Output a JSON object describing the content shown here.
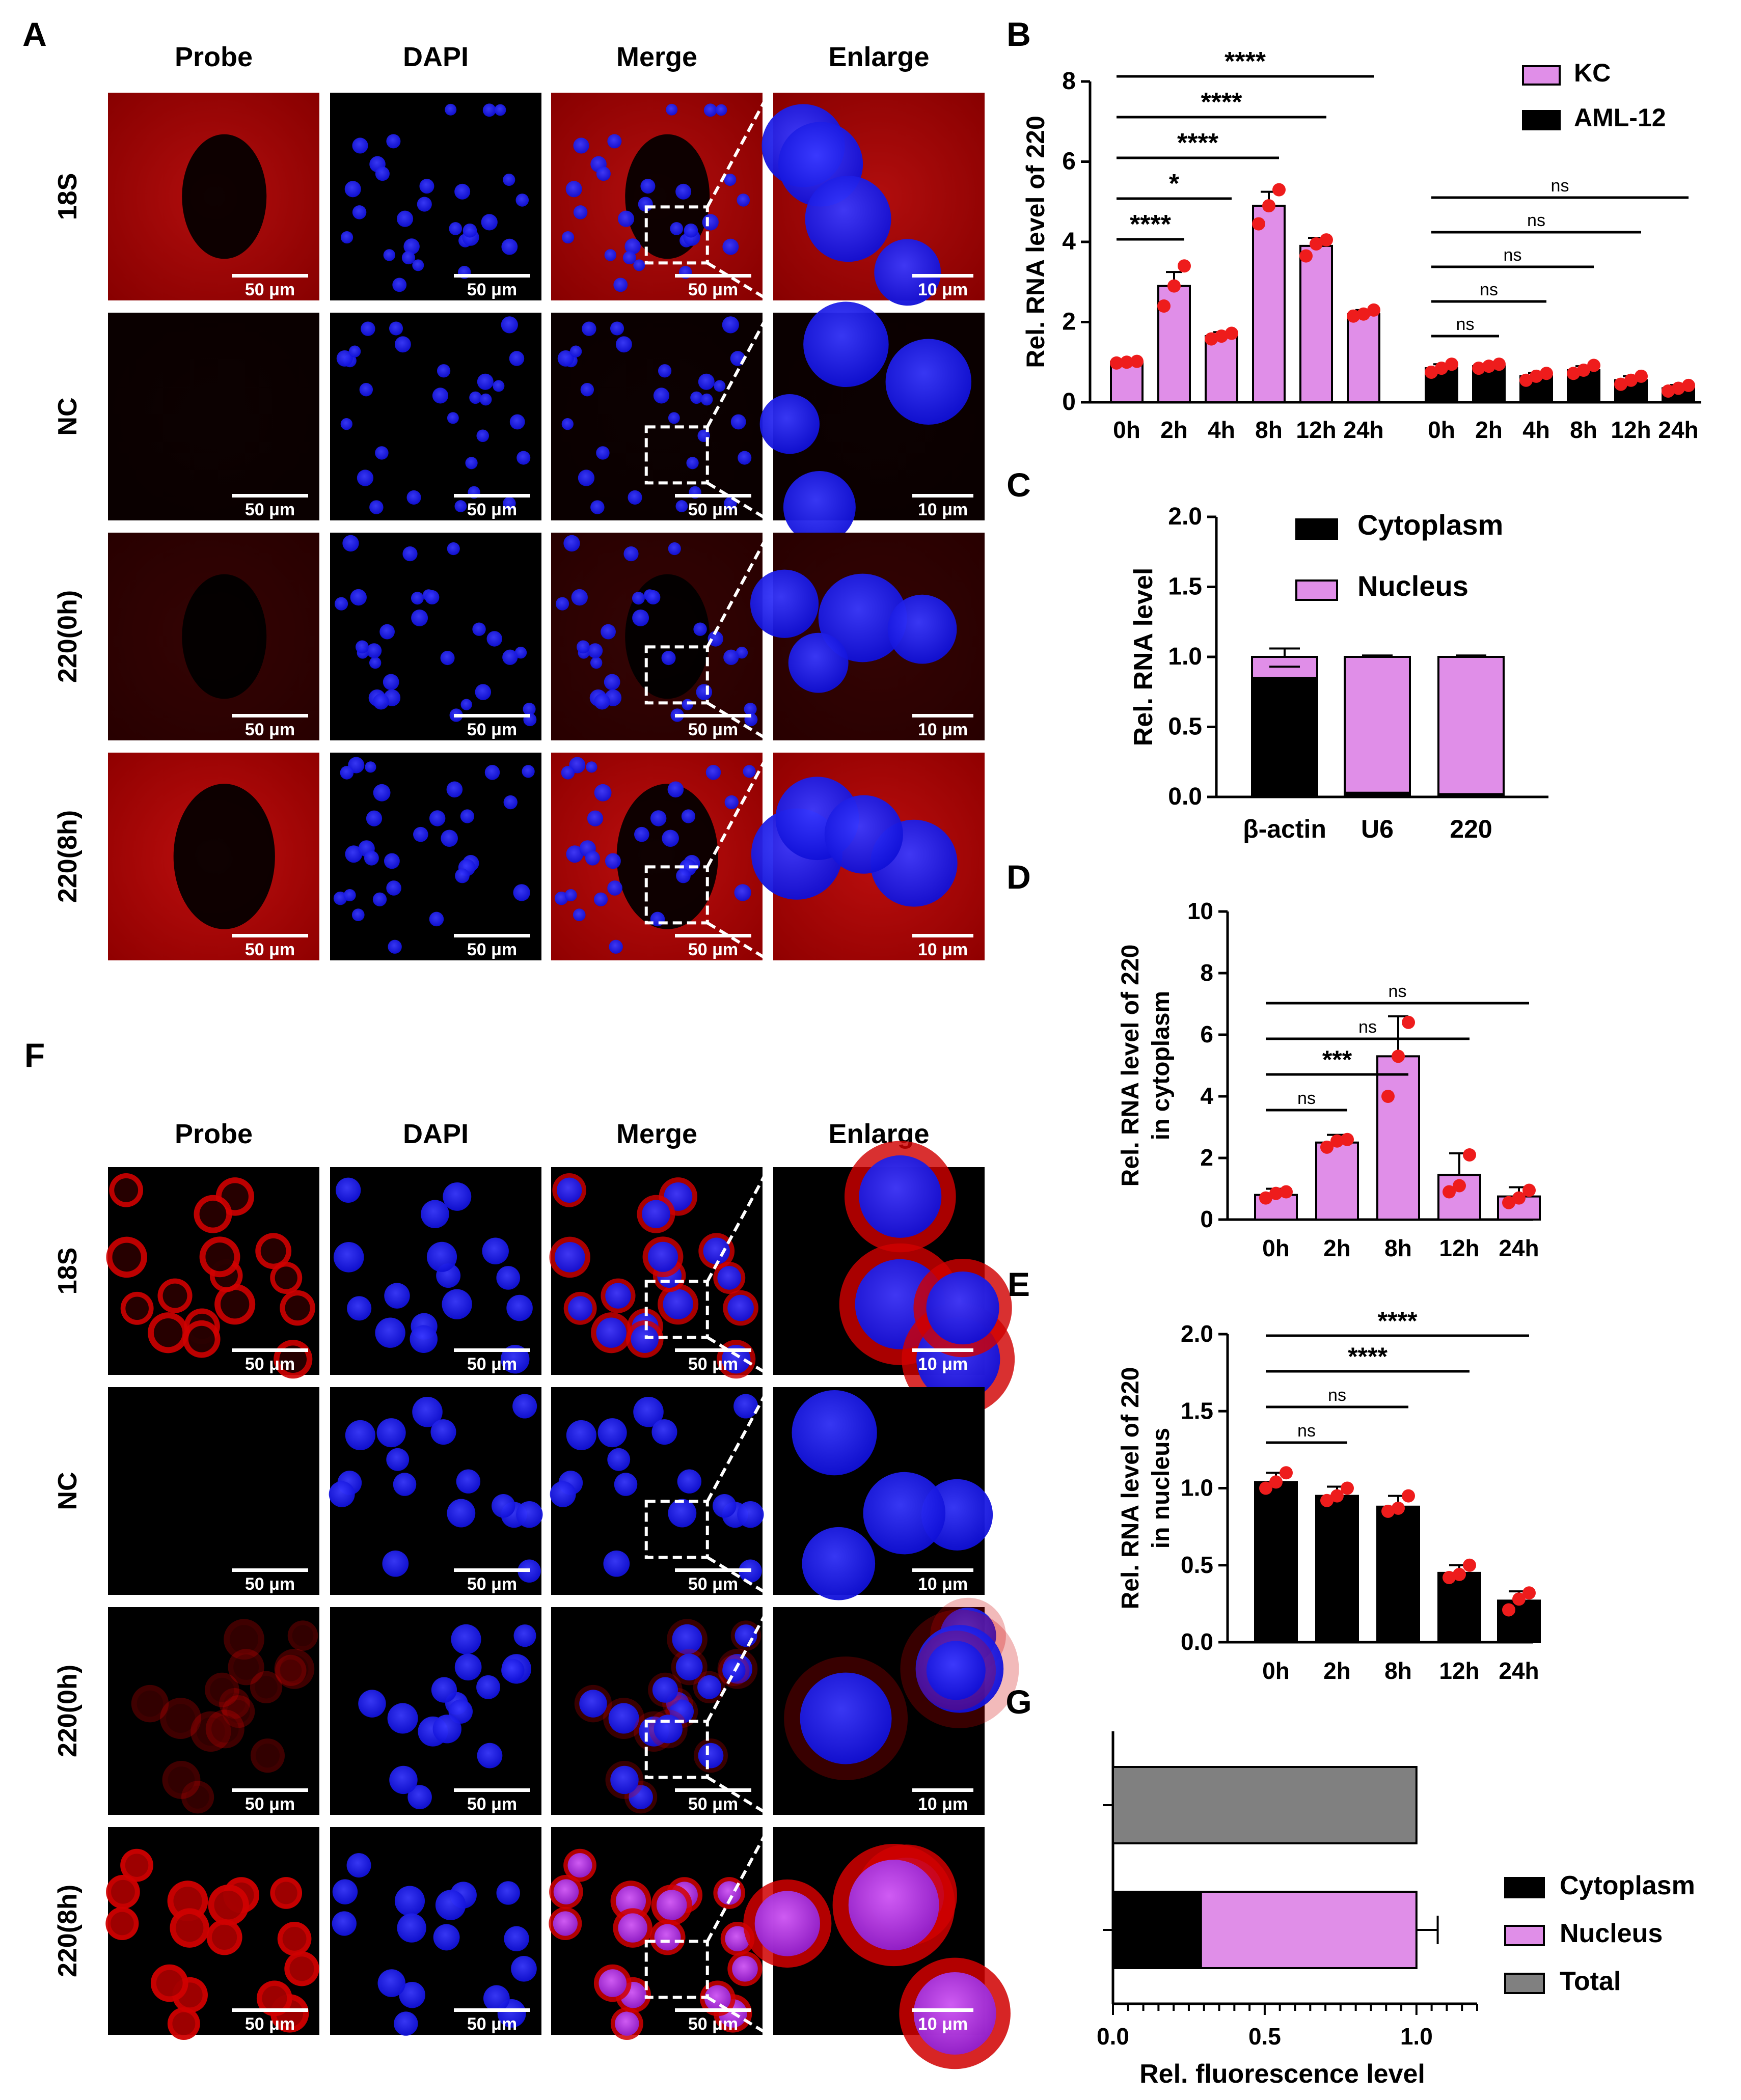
{
  "panel_letters": [
    "A",
    "B",
    "C",
    "D",
    "E",
    "F",
    "G"
  ],
  "micrograph_sets": [
    {
      "id": "A",
      "columns": [
        "Probe",
        "DAPI",
        "Merge",
        "Enlarge"
      ],
      "rows": [
        "18S",
        "NC",
        "220(0h)",
        "220(8h)"
      ],
      "scale_bar_main": "50 μm",
      "scale_bar_enlarge": "10 μm",
      "rows_probe_intensity": [
        0.85,
        0.05,
        0.25,
        0.9
      ]
    },
    {
      "id": "F",
      "columns": [
        "Probe",
        "DAPI",
        "Merge",
        "Enlarge"
      ],
      "rows": [
        "18S",
        "NC",
        "220(0h)",
        "220(8h)"
      ],
      "scale_bar_main": "50 μm",
      "scale_bar_enlarge": "10 μm",
      "rows_probe_intensity": [
        0.9,
        0.05,
        0.3,
        0.95
      ]
    }
  ],
  "colors": {
    "kc": "#e08ee8",
    "aml": "#000000",
    "dot": "#ee1c1c",
    "total": "#808080",
    "red": "#c80000",
    "blue": "#1a1aff"
  },
  "chart_data": [
    {
      "id": "B",
      "type": "bar",
      "ylabel": "Rel. RNA level of 220",
      "ylim": [
        0,
        8
      ],
      "yticks": [
        "0",
        "2",
        "4",
        "6",
        "8"
      ],
      "categories": [
        "0h",
        "2h",
        "4h",
        "8h",
        "12h",
        "24h"
      ],
      "series": [
        {
          "name": "KC",
          "values": [
            1.0,
            2.9,
            1.65,
            4.9,
            3.9,
            2.2
          ],
          "errors": [
            0.05,
            0.35,
            0.1,
            0.35,
            0.2,
            0.1
          ],
          "points": [
            [
              0.98,
              1.0,
              1.02
            ],
            [
              2.4,
              2.9,
              3.4
            ],
            [
              1.58,
              1.65,
              1.72
            ],
            [
              4.45,
              4.9,
              5.3
            ],
            [
              3.65,
              3.95,
              4.05
            ],
            [
              2.15,
              2.2,
              2.3
            ]
          ]
        },
        {
          "name": "AML-12",
          "values": [
            0.85,
            0.9,
            0.65,
            0.8,
            0.55,
            0.35
          ],
          "errors": [
            0.1,
            0.05,
            0.08,
            0.1,
            0.1,
            0.08
          ],
          "points": [
            [
              0.75,
              0.85,
              0.95
            ],
            [
              0.85,
              0.9,
              0.95
            ],
            [
              0.55,
              0.65,
              0.72
            ],
            [
              0.72,
              0.8,
              0.92
            ],
            [
              0.45,
              0.55,
              0.65
            ],
            [
              0.28,
              0.35,
              0.42
            ]
          ]
        }
      ],
      "legend": [
        "KC",
        "AML-12"
      ],
      "significance_kc": [
        {
          "to": "2h",
          "label": "****"
        },
        {
          "to": "4h",
          "label": "*"
        },
        {
          "to": "8h",
          "label": "****"
        },
        {
          "to": "12h",
          "label": "****"
        },
        {
          "to": "24h",
          "label": "****"
        }
      ],
      "significance_aml": [
        {
          "to": "2h",
          "label": "ns"
        },
        {
          "to": "4h",
          "label": "ns"
        },
        {
          "to": "8h",
          "label": "ns"
        },
        {
          "to": "12h",
          "label": "ns"
        },
        {
          "to": "24h",
          "label": "ns"
        }
      ]
    },
    {
      "id": "C",
      "type": "bar",
      "ylabel": "Rel. RNA level",
      "ylim": [
        0,
        2.0
      ],
      "yticks": [
        "0.0",
        "0.5",
        "1.0",
        "1.5",
        "2.0"
      ],
      "categories": [
        "β-actin",
        "U6",
        "220"
      ],
      "series": [
        {
          "name": "Cytoplasm",
          "values": [
            0.85,
            0.03,
            0.02
          ]
        },
        {
          "name": "Nucleus",
          "values": [
            0.15,
            0.97,
            0.98
          ]
        }
      ],
      "errors": [
        0.06,
        0.01,
        0.01
      ],
      "inner_error": 0.08,
      "legend": [
        "Cytoplasm",
        "Nucleus"
      ]
    },
    {
      "id": "D",
      "type": "bar",
      "ylabel": [
        "Rel. RNA level of 220",
        "in cytoplasm"
      ],
      "ylim": [
        0,
        10
      ],
      "yticks": [
        "0",
        "2",
        "4",
        "6",
        "8",
        "10"
      ],
      "categories": [
        "0h",
        "2h",
        "8h",
        "12h",
        "24h"
      ],
      "values": [
        0.8,
        2.5,
        5.3,
        1.45,
        0.75
      ],
      "errors": [
        0.2,
        0.25,
        1.3,
        0.7,
        0.3
      ],
      "points": [
        [
          0.7,
          0.85,
          0.9
        ],
        [
          2.35,
          2.55,
          2.6
        ],
        [
          4.0,
          5.3,
          6.4
        ],
        [
          0.9,
          1.1,
          2.1
        ],
        [
          0.55,
          0.7,
          0.95
        ]
      ],
      "significance": [
        {
          "to": "2h",
          "label": "ns"
        },
        {
          "to": "8h",
          "label": "***"
        },
        {
          "to": "12h",
          "label": "ns"
        },
        {
          "to": "24h",
          "label": "ns"
        }
      ]
    },
    {
      "id": "E",
      "type": "bar",
      "ylabel": [
        "Rel. RNA level of 220",
        "in nucleus"
      ],
      "ylim": [
        0,
        2.0
      ],
      "yticks": [
        "0.0",
        "0.5",
        "1.0",
        "1.5",
        "2.0"
      ],
      "categories": [
        "0h",
        "2h",
        "8h",
        "12h",
        "24h"
      ],
      "values": [
        1.04,
        0.95,
        0.88,
        0.45,
        0.27
      ],
      "errors": [
        0.06,
        0.06,
        0.07,
        0.05,
        0.06
      ],
      "points": [
        [
          1.0,
          1.04,
          1.1
        ],
        [
          0.92,
          0.95,
          1.0
        ],
        [
          0.85,
          0.87,
          0.95
        ],
        [
          0.42,
          0.44,
          0.5
        ],
        [
          0.21,
          0.28,
          0.32
        ]
      ],
      "significance": [
        {
          "to": "2h",
          "label": "ns"
        },
        {
          "to": "8h",
          "label": "ns"
        },
        {
          "to": "12h",
          "label": "****"
        },
        {
          "to": "24h",
          "label": "****"
        }
      ]
    },
    {
      "id": "G",
      "type": "bar",
      "orientation": "horizontal",
      "xlabel": "Rel. fluorescence level",
      "xlim": [
        0,
        1.2
      ],
      "xticks": [
        "0.0",
        "0.5",
        "1.0"
      ],
      "bars": [
        {
          "segments": [
            {
              "name": "Total",
              "value": 1.0
            }
          ]
        },
        {
          "segments": [
            {
              "name": "Cytoplasm",
              "value": 0.29
            },
            {
              "name": "Nucleus",
              "value": 0.71
            }
          ],
          "errors": [
            0.06,
            0.07
          ]
        }
      ],
      "legend": [
        "Cytoplasm",
        "Nucleus",
        "Total"
      ]
    }
  ]
}
